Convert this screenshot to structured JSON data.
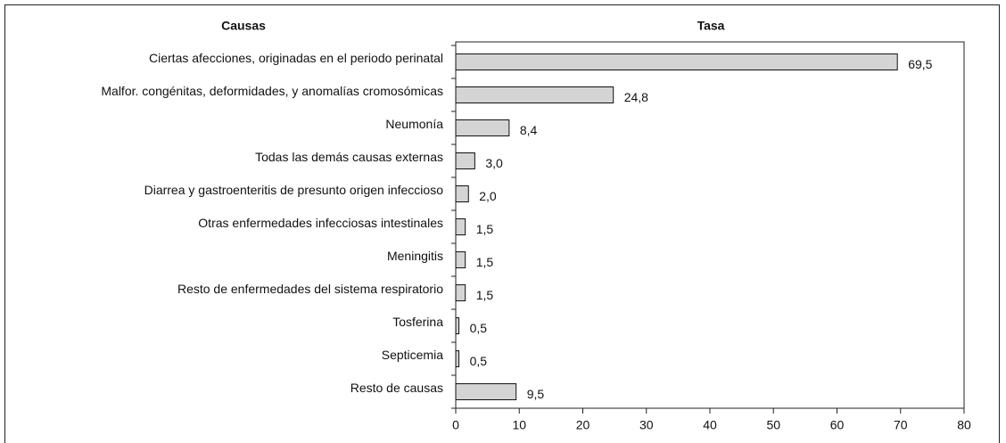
{
  "chart_data": {
    "type": "bar",
    "orientation": "horizontal",
    "headers": [
      "Causas",
      "Tasa"
    ],
    "categories": [
      "Ciertas afecciones, originadas en el periodo perinatal",
      "Malfor. congénitas, deformidades, y anomalías cromosómicas",
      "Neumonía",
      "Todas las demás causas externas",
      "Diarrea y gastroenteritis de presunto origen infeccioso",
      "Otras enfermedades infecciosas intestinales",
      "Meningitis",
      "Resto de enfermedades del sistema respiratorio",
      "Tosferina",
      "Septicemia",
      "Resto de causas"
    ],
    "values": [
      69.5,
      24.8,
      8.4,
      3.0,
      2.0,
      1.5,
      1.5,
      1.5,
      0.5,
      0.5,
      9.5
    ],
    "value_labels": [
      "69,5",
      "24,8",
      "8,4",
      "3,0",
      "2,0",
      "1,5",
      "1,5",
      "1,5",
      "0,5",
      "0,5",
      "9,5"
    ],
    "color": "#d4d4d4",
    "xlim": [
      0,
      80
    ],
    "xticks": [
      0,
      10,
      20,
      30,
      40,
      50,
      60,
      70,
      80
    ],
    "grid": false
  }
}
